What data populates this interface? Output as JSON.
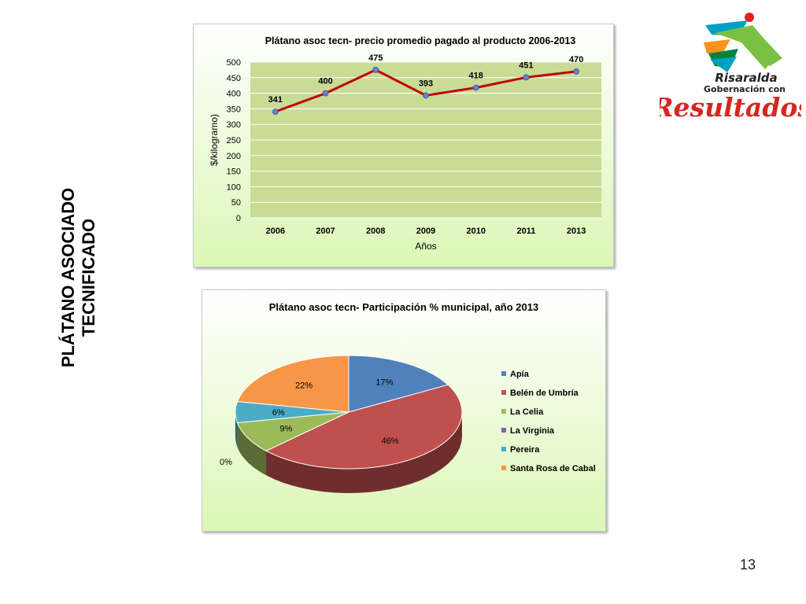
{
  "slide": {
    "side_title_line1": "PLÁTANO ASOCIADO",
    "side_title_line2": "TECNIFICADO",
    "page_number": "13"
  },
  "logo": {
    "line1": "Risaralda",
    "line2": "Gobernación con",
    "line3": "Resultados",
    "colors": [
      "#7ac143",
      "#00a0c6",
      "#f7941d",
      "#e2231a",
      "#00843d"
    ]
  },
  "chart_data": [
    {
      "type": "line",
      "title": "Plátano asoc tecn- precio promedio pagado al producto 2006-2013",
      "xlabel": "Años",
      "ylabel": "$/kilogramo)",
      "categories": [
        "2006",
        "2007",
        "2008",
        "2009",
        "2010",
        "2011",
        "2013"
      ],
      "series": [
        {
          "values": [
            341,
            400,
            475,
            393,
            418,
            451,
            470
          ]
        }
      ],
      "data_labels": [
        "341",
        "400",
        "475",
        "393",
        "418",
        "451",
        "470"
      ],
      "ylim": [
        0,
        500
      ],
      "yticks": [
        0,
        50,
        100,
        150,
        200,
        250,
        300,
        350,
        400,
        450,
        500
      ],
      "ytick_labels": [
        "0",
        "50",
        "100",
        "150",
        "200",
        "250",
        "300",
        "350",
        "400",
        "450",
        "500"
      ],
      "grid": true,
      "line_color": "#c00000",
      "marker_color": "#6a7fc9",
      "plot_bg": "#c8dc96"
    },
    {
      "type": "pie",
      "title": "Plátano asoc tecn- Participación % municipal, año 2013",
      "categories": [
        "Apía",
        "Belén de Umbría",
        "La Celia",
        "La Virginia",
        "Pereira",
        "Santa Rosa de Cabal"
      ],
      "values": [
        17,
        46,
        9,
        0,
        6,
        22
      ],
      "labels": [
        "17%",
        "46%",
        "9%",
        "0%",
        "6%",
        "22%"
      ],
      "colors": [
        "#4f81bd",
        "#c0504d",
        "#9bbb59",
        "#8064a2",
        "#4bacc6",
        "#f79646"
      ],
      "legend": "right"
    }
  ]
}
